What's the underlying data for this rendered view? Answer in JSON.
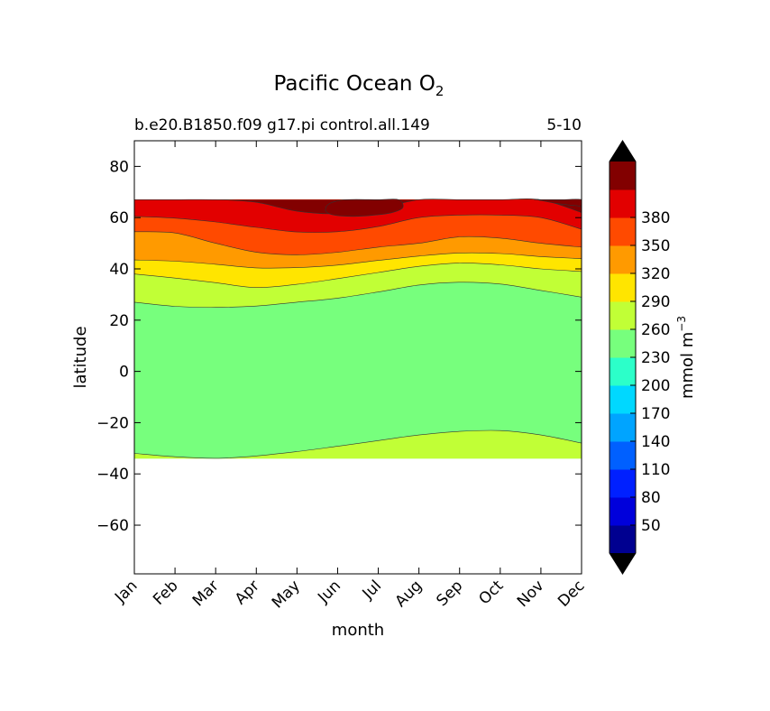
{
  "chart_data": {
    "type": "contour",
    "title": "Pacific Ocean O",
    "title_subscript": "2",
    "subtitle_left": "b.e20.B1850.f09 g17.pi control.all.149",
    "subtitle_right": "5-10",
    "xlabel": "month",
    "ylabel": "latitude",
    "x_ticks": [
      "Jan",
      "Feb",
      "Mar",
      "Apr",
      "May",
      "Jun",
      "Jul",
      "Aug",
      "Sep",
      "Oct",
      "Nov",
      "Dec"
    ],
    "y_ticks": [
      80,
      60,
      40,
      20,
      0,
      -20,
      -40,
      -60
    ],
    "y_range": [
      -79,
      90
    ],
    "data_lat_range": [
      -34,
      67
    ],
    "grid": false,
    "levels": [
      20,
      50,
      80,
      110,
      140,
      170,
      200,
      230,
      260,
      290,
      320,
      350,
      380
    ],
    "colorbar": {
      "label": "mmol m",
      "label_superscript": "−3",
      "tick_labels": [
        "50",
        "80",
        "110",
        "140",
        "170",
        "200",
        "230",
        "260",
        "290",
        "320",
        "350",
        "380"
      ],
      "extend": "both",
      "colors": [
        "#000090",
        "#0000db",
        "#0020ff",
        "#0060ff",
        "#00a4ff",
        "#00d8ff",
        "#2cffc9",
        "#77ff7d",
        "#c1ff36",
        "#ffe500",
        "#ff9a00",
        "#ff4a00",
        "#e20000",
        "#820000"
      ],
      "under_color": "#000000",
      "over_color": "#000000"
    },
    "contour_boundaries": [
      {
        "name": "230 south",
        "lower": 230,
        "lat": [
          -32.0,
          -33.3,
          -33.9,
          -33.0,
          -31.3,
          -29.2,
          -27.0,
          -24.8,
          -23.4,
          -23.1,
          -24.8,
          -28.0
        ]
      },
      {
        "name": "230 north",
        "lower": 230,
        "lat": [
          27.0,
          25.4,
          25.0,
          25.5,
          27.0,
          28.6,
          31.0,
          33.7,
          34.8,
          34.1,
          31.6,
          29.0
        ]
      },
      {
        "name": "260",
        "lower": 260,
        "lat": [
          38.0,
          36.4,
          34.6,
          32.7,
          34.0,
          36.2,
          38.6,
          41.0,
          42.3,
          41.6,
          40.0,
          39.0
        ]
      },
      {
        "name": "290",
        "lower": 290,
        "lat": [
          43.5,
          43.0,
          41.8,
          40.4,
          40.5,
          41.5,
          43.3,
          45.0,
          46.2,
          46.0,
          44.8,
          44.0
        ]
      },
      {
        "name": "320",
        "lower": 320,
        "lat": [
          54.5,
          54.0,
          50.0,
          46.5,
          45.5,
          46.5,
          48.5,
          50.0,
          52.5,
          52.0,
          50.0,
          48.5
        ]
      },
      {
        "name": "350",
        "lower": 350,
        "lat": [
          60.5,
          59.8,
          58.3,
          56.2,
          54.4,
          54.5,
          56.5,
          60.0,
          61.0,
          61.0,
          60.0,
          55.5
        ]
      },
      {
        "name": "380",
        "lower": 380,
        "lat": [
          67.0,
          67.0,
          67.0,
          66.0,
          62.5,
          61.5,
          63.5,
          67.0,
          67.0,
          67.0,
          67.0,
          62.0
        ]
      }
    ],
    "closed_contours": [
      {
        "name": "410 patch May-Jun",
        "lower": 410,
        "month": [
          4.7,
          4.8,
          5.0,
          5.4,
          5.9,
          6.3,
          6.6,
          6.5,
          6.0,
          5.2,
          4.8
        ],
        "lat": [
          63.0,
          61.5,
          60.8,
          60.5,
          61.0,
          61.8,
          63.8,
          67.0,
          67.0,
          67.0,
          65.5
        ]
      },
      {
        "name": "410 patch Nov-Dec",
        "lower": 410,
        "month": [
          9.9,
          10.4,
          10.9,
          11.0,
          11.0,
          10.5,
          9.9
        ],
        "lat": [
          67.0,
          65.5,
          64.6,
          64.5,
          67.0,
          67.0,
          67.0
        ]
      }
    ]
  }
}
